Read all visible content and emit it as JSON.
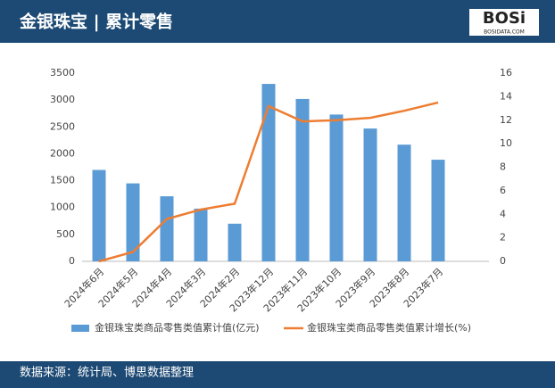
{
  "header": {
    "title": "金银珠宝 | 累计零售",
    "logo": "BOSi",
    "logo_sub": "BOSIDATA.COM"
  },
  "chart_data": {
    "type": "bar-line",
    "categories": [
      "2024年6月",
      "2024年5月",
      "2024年4月",
      "2024年3月",
      "2024年2月",
      "2023年12月",
      "2023年11月",
      "2023年10月",
      "2023年9月",
      "2023年8月",
      "2023年7月",
      null
    ],
    "series": [
      {
        "name": "金银珠宝类商品零售类值累计值(亿元)",
        "color": "#5b9bd5",
        "type": "bar",
        "values": [
          1700,
          1450,
          1210,
          980,
          700,
          3300,
          3020,
          2730,
          2470,
          2170,
          1890,
          null
        ]
      },
      {
        "name": "金银珠宝类商品零售类值累计增长(%)",
        "color": "#ed7d31",
        "type": "line",
        "axis": "y2",
        "values": [
          0,
          0.8,
          3.6,
          4.4,
          4.9,
          13.2,
          11.9,
          12.0,
          12.2,
          12.8,
          13.5,
          null
        ]
      }
    ],
    "ylim": [
      0,
      3500
    ],
    "yticks": [
      0,
      500,
      1000,
      1500,
      2000,
      2500,
      3000,
      3500
    ],
    "y2lim": [
      0,
      16
    ],
    "y2ticks": [
      0,
      2,
      4,
      6,
      8,
      10,
      12,
      14,
      16
    ]
  },
  "footer": {
    "source": "数据来源：统计局、博思数据整理"
  }
}
